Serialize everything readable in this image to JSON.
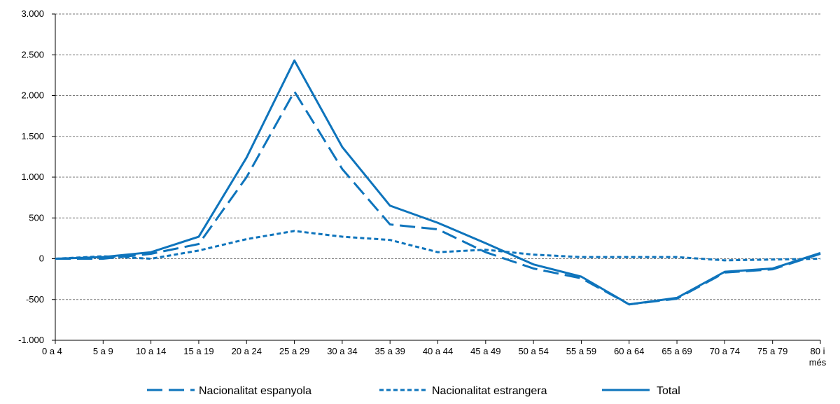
{
  "chart_data": {
    "type": "line",
    "title": "",
    "xlabel": "",
    "ylabel": "",
    "ylim": [
      -1000,
      3000
    ],
    "yticks": [
      -1000,
      -500,
      0,
      500,
      1000,
      1500,
      2000,
      2500,
      3000
    ],
    "ytick_labels": [
      "-1.000",
      "-500",
      "0",
      "500",
      "1.000",
      "1.500",
      "2.000",
      "2.500",
      "3.000"
    ],
    "grid": true,
    "legend_position": "bottom",
    "line_color": "#0E74BC",
    "categories": [
      [
        "0 a 4"
      ],
      [
        "5 a 9"
      ],
      [
        "10 a 14"
      ],
      [
        "15 a 19"
      ],
      [
        "20 a 24"
      ],
      [
        "25 a 29"
      ],
      [
        "30 a 34"
      ],
      [
        "35 a 39"
      ],
      [
        "40 a 44"
      ],
      [
        "45 a 49"
      ],
      [
        "50 a 54"
      ],
      [
        "55 a 59"
      ],
      [
        "60 a 64"
      ],
      [
        "65 a 69"
      ],
      [
        "70 a 74"
      ],
      [
        "75 a 79"
      ],
      [
        "80 i",
        "més"
      ]
    ],
    "series": [
      {
        "name": "Nacionalitat espanyola",
        "style": "long-dash",
        "values": [
          0,
          0,
          60,
          180,
          1000,
          2050,
          1100,
          420,
          360,
          80,
          -120,
          -240,
          -560,
          -490,
          -170,
          -130,
          60
        ]
      },
      {
        "name": "Nacionalitat estrangera",
        "style": "short-dash",
        "values": [
          0,
          30,
          0,
          100,
          240,
          340,
          270,
          230,
          80,
          110,
          50,
          20,
          20,
          20,
          -20,
          -10,
          0
        ]
      },
      {
        "name": "Total",
        "style": "solid",
        "values": [
          0,
          20,
          80,
          270,
          1240,
          2430,
          1370,
          650,
          440,
          190,
          -70,
          -220,
          -560,
          -480,
          -160,
          -120,
          70
        ]
      }
    ]
  }
}
